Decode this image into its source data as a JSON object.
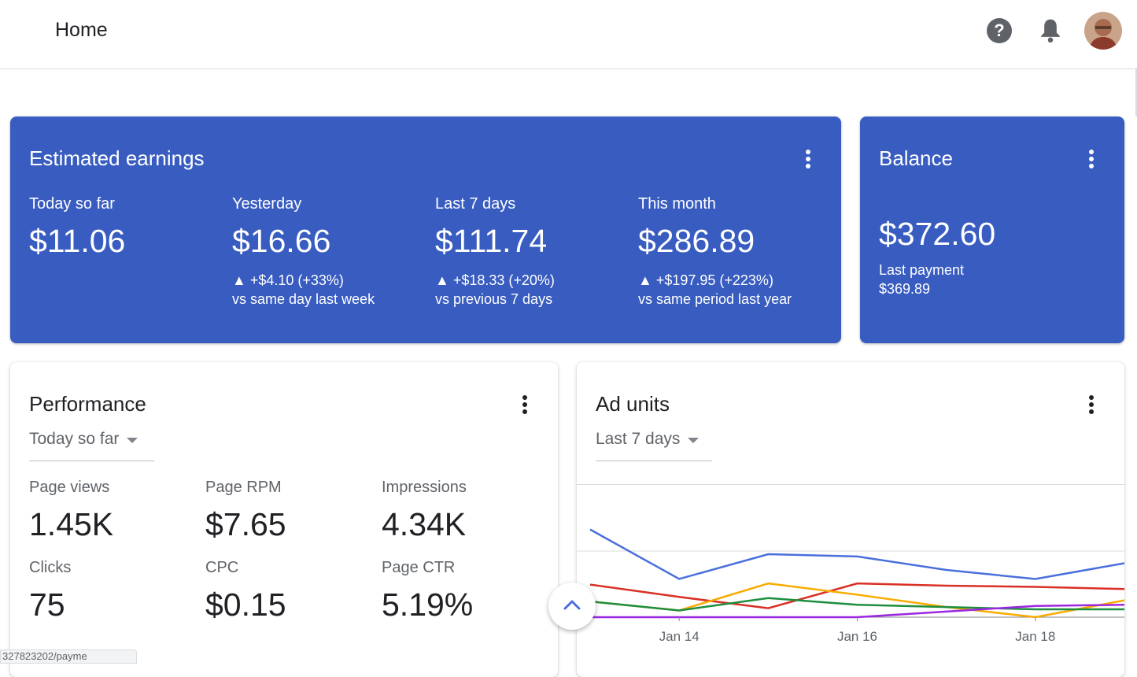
{
  "header": {
    "title": "Home",
    "help_icon": "help-circle-icon",
    "notifications_icon": "bell-icon",
    "avatar": "user-avatar"
  },
  "earnings": {
    "title": "Estimated earnings",
    "metrics": [
      {
        "label": "Today so far",
        "value": "$11.06",
        "delta": "",
        "comparison": ""
      },
      {
        "label": "Yesterday",
        "value": "$16.66",
        "delta": "▲ +$4.10 (+33%)",
        "comparison": "vs same day last week"
      },
      {
        "label": "Last 7 days",
        "value": "$111.74",
        "delta": "▲ +$18.33 (+20%)",
        "comparison": "vs previous 7 days"
      },
      {
        "label": "This month",
        "value": "$286.89",
        "delta": "▲ +$197.95 (+223%)",
        "comparison": "vs same period last year"
      }
    ]
  },
  "balance": {
    "title": "Balance",
    "value": "$372.60",
    "last_payment_label": "Last payment",
    "last_payment_value": "$369.89"
  },
  "performance": {
    "title": "Performance",
    "range": "Today so far",
    "metrics": [
      {
        "label": "Page views",
        "value": "1.45K"
      },
      {
        "label": "Page RPM",
        "value": "$7.65"
      },
      {
        "label": "Impressions",
        "value": "4.34K"
      },
      {
        "label": "Clicks",
        "value": "75"
      },
      {
        "label": "CPC",
        "value": "$0.15"
      },
      {
        "label": "Page CTR",
        "value": "5.19%"
      }
    ]
  },
  "ad_units": {
    "title": "Ad units",
    "range": "Last 7 days"
  },
  "status_bar": {
    "url": "327823202/payme"
  },
  "colors": {
    "brand_blue": "#385cc0",
    "series_blue": "#4a6fdc",
    "series_red": "#d93025",
    "series_orange": "#f9ab00",
    "series_green": "#1e8e3e",
    "series_purple": "#9c27e0"
  },
  "chart_data": {
    "type": "line",
    "x": [
      "Jan 13",
      "Jan 14",
      "Jan 15",
      "Jan 16",
      "Jan 17",
      "Jan 18",
      "Jan 19"
    ],
    "tick_labels": [
      "Jan 14",
      "Jan 16",
      "Jan 18"
    ],
    "grid": true,
    "series": [
      {
        "color": "#4a6fdc",
        "values": [
          3.9,
          1.7,
          2.8,
          2.7,
          2.1,
          1.7,
          2.4
        ]
      },
      {
        "color": "#d93025",
        "values": [
          1.45,
          0.9,
          0.4,
          1.5,
          1.4,
          1.35,
          1.25
        ]
      },
      {
        "color": "#f9ab00",
        "values": [
          0.7,
          0.3,
          1.5,
          1.0,
          0.45,
          0.0,
          0.75
        ]
      },
      {
        "color": "#1e8e3e",
        "values": [
          0.7,
          0.3,
          0.85,
          0.55,
          0.45,
          0.35,
          0.35
        ]
      },
      {
        "color": "#9c27e0",
        "values": [
          0.0,
          0.0,
          0.0,
          0.0,
          0.25,
          0.5,
          0.55
        ]
      }
    ],
    "ylim": [
      0,
      5
    ]
  }
}
